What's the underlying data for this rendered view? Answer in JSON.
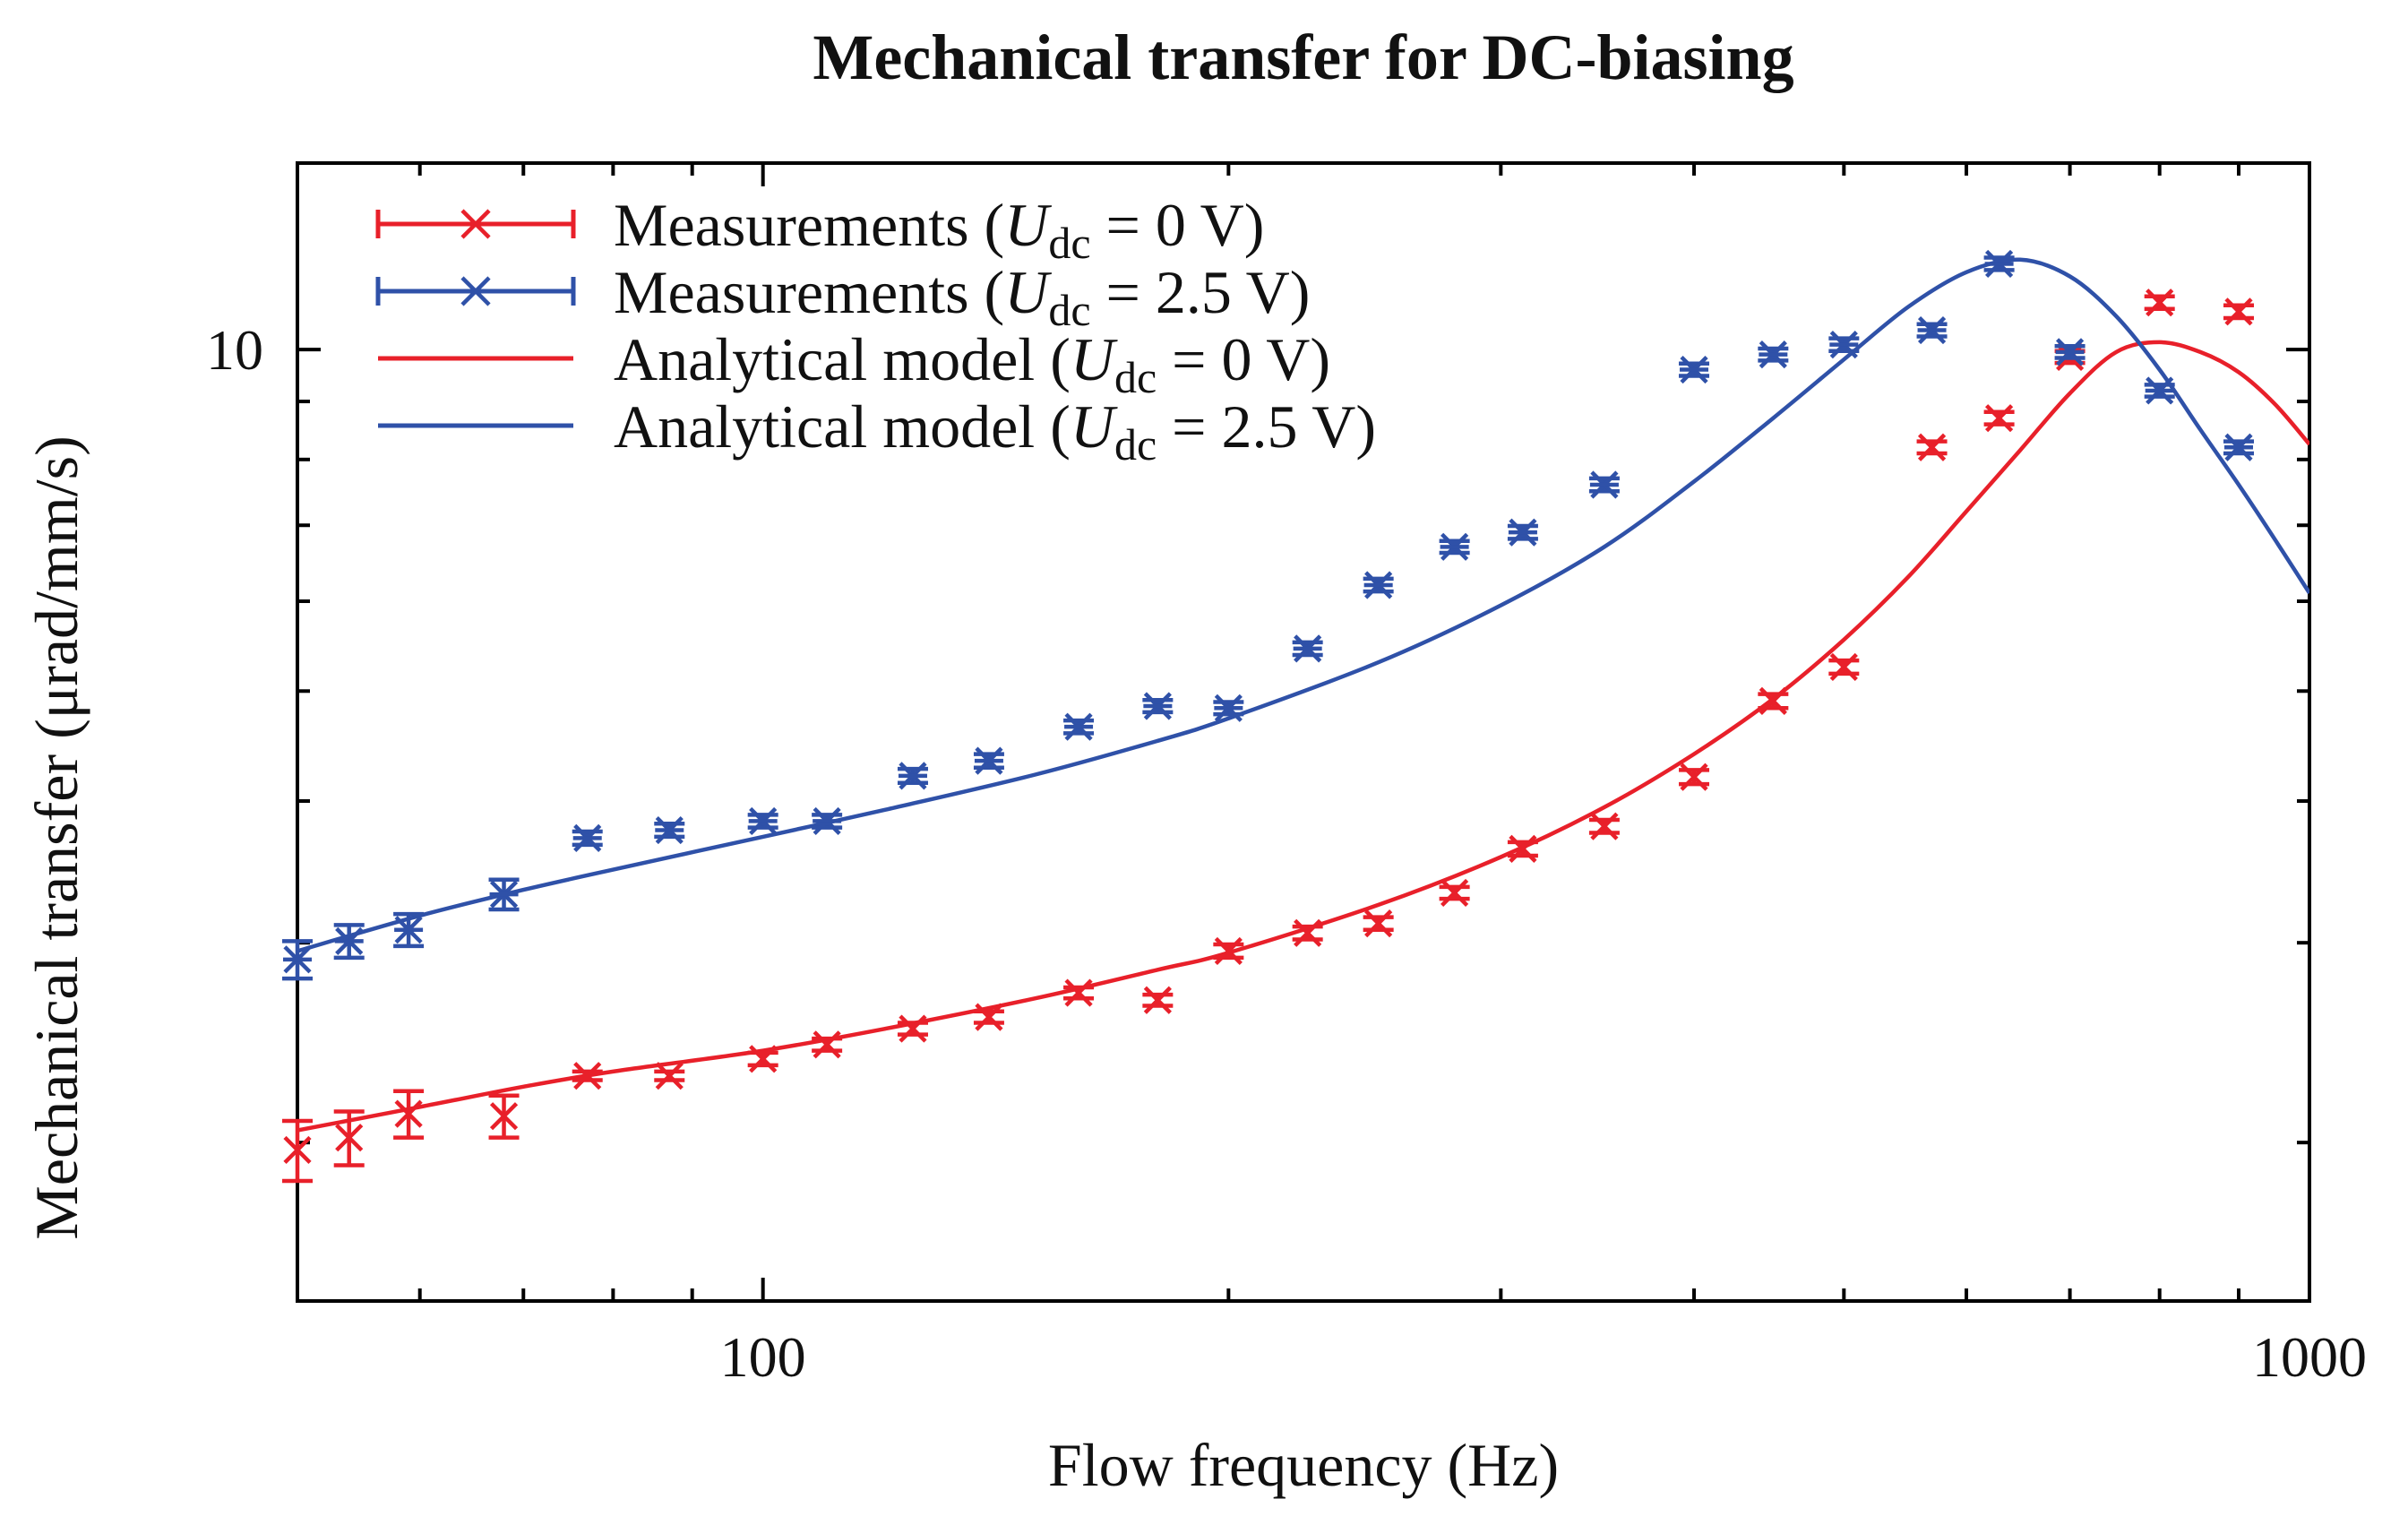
{
  "chart_data": {
    "type": "scatter",
    "title": "Mechanical transfer for DC-biasing",
    "xlabel": "Flow frequency (Hz)",
    "ylabel": "Mechanical transfer (μrad/mm/s)",
    "xscale": "log",
    "yscale": "log",
    "xlim": [
      50,
      1000
    ],
    "ylim": [
      1.45,
      14.6
    ],
    "x_ticks": [
      {
        "value": 100,
        "label": "100"
      },
      {
        "value": 1000,
        "label": "1000"
      }
    ],
    "y_ticks": [
      {
        "value": 10,
        "label": "10"
      }
    ],
    "y_minor_ticks": [
      2,
      3,
      4,
      5,
      6,
      7,
      8,
      9
    ],
    "x_minor_ticks": [
      60,
      70,
      80,
      90,
      200,
      300,
      400,
      500,
      600,
      700,
      800,
      900
    ],
    "legend_position": "top-left",
    "legend": [
      {
        "prefix": "Measurements (",
        "var": "U",
        "sub": "dc",
        "suffix": " = 0 V)",
        "style": "errorbar-x",
        "color": "#e8202a"
      },
      {
        "prefix": "Measurements (",
        "var": "U",
        "sub": "dc",
        "suffix": " = 2.5 V)",
        "style": "errorbar-star",
        "color": "#2f51a8"
      },
      {
        "prefix": "Analytical model (",
        "var": "U",
        "sub": "dc",
        "suffix": " = 0 V)",
        "style": "line",
        "color": "#e8202a"
      },
      {
        "prefix": "Analytical model (",
        "var": "U",
        "sub": "dc",
        "suffix": " = 2.5 V)",
        "style": "line",
        "color": "#2f51a8"
      }
    ],
    "series": [
      {
        "name": "Measurements (Udc = 0 V)",
        "kind": "errorbar",
        "marker": "x",
        "color": "#e8202a",
        "points": [
          {
            "x": 50,
            "y": 1.97,
            "err": 0.12
          },
          {
            "x": 54,
            "y": 2.02,
            "err": 0.11
          },
          {
            "x": 59,
            "y": 2.12,
            "err": 0.1
          },
          {
            "x": 68,
            "y": 2.11,
            "err": 0.09
          },
          {
            "x": 77,
            "y": 2.29,
            "err": 0.02
          },
          {
            "x": 87,
            "y": 2.29,
            "err": 0.02
          },
          {
            "x": 100,
            "y": 2.37,
            "err": 0.03
          },
          {
            "x": 110,
            "y": 2.44,
            "err": 0.03
          },
          {
            "x": 125,
            "y": 2.52,
            "err": 0.03
          },
          {
            "x": 140,
            "y": 2.58,
            "err": 0.03
          },
          {
            "x": 160,
            "y": 2.71,
            "err": 0.03
          },
          {
            "x": 180,
            "y": 2.67,
            "err": 0.03
          },
          {
            "x": 200,
            "y": 2.95,
            "err": 0.04
          },
          {
            "x": 225,
            "y": 3.06,
            "err": 0.04
          },
          {
            "x": 250,
            "y": 3.12,
            "err": 0.04
          },
          {
            "x": 280,
            "y": 3.32,
            "err": 0.04
          },
          {
            "x": 310,
            "y": 3.63,
            "err": 0.05
          },
          {
            "x": 350,
            "y": 3.8,
            "err": 0.05
          },
          {
            "x": 400,
            "y": 4.2,
            "err": 0.06
          },
          {
            "x": 450,
            "y": 4.9,
            "err": 0.07
          },
          {
            "x": 500,
            "y": 5.25,
            "err": 0.07
          },
          {
            "x": 570,
            "y": 8.2,
            "err": 0.1
          },
          {
            "x": 630,
            "y": 8.7,
            "err": 0.11
          },
          {
            "x": 700,
            "y": 9.85,
            "err": 0.12
          },
          {
            "x": 800,
            "y": 11.0,
            "err": 0.14
          },
          {
            "x": 900,
            "y": 10.8,
            "err": 0.14
          }
        ]
      },
      {
        "name": "Measurements (Udc = 2.5 V)",
        "kind": "errorbar",
        "marker": "star",
        "color": "#2f51a8",
        "points": [
          {
            "x": 50,
            "y": 2.9,
            "err": 0.11
          },
          {
            "x": 54,
            "y": 3.01,
            "err": 0.1
          },
          {
            "x": 59,
            "y": 3.08,
            "err": 0.1
          },
          {
            "x": 68,
            "y": 3.31,
            "err": 0.1
          },
          {
            "x": 77,
            "y": 3.71,
            "err": 0.05
          },
          {
            "x": 87,
            "y": 3.77,
            "err": 0.05
          },
          {
            "x": 100,
            "y": 3.84,
            "err": 0.05
          },
          {
            "x": 110,
            "y": 3.84,
            "err": 0.05
          },
          {
            "x": 125,
            "y": 4.21,
            "err": 0.06
          },
          {
            "x": 140,
            "y": 4.34,
            "err": 0.06
          },
          {
            "x": 160,
            "y": 4.65,
            "err": 0.06
          },
          {
            "x": 180,
            "y": 4.85,
            "err": 0.06
          },
          {
            "x": 200,
            "y": 4.83,
            "err": 0.06
          },
          {
            "x": 225,
            "y": 5.45,
            "err": 0.07
          },
          {
            "x": 250,
            "y": 6.2,
            "err": 0.08
          },
          {
            "x": 280,
            "y": 6.7,
            "err": 0.08
          },
          {
            "x": 310,
            "y": 6.9,
            "err": 0.09
          },
          {
            "x": 350,
            "y": 7.6,
            "err": 0.1
          },
          {
            "x": 400,
            "y": 9.6,
            "err": 0.12
          },
          {
            "x": 450,
            "y": 9.9,
            "err": 0.12
          },
          {
            "x": 500,
            "y": 10.1,
            "err": 0.13
          },
          {
            "x": 570,
            "y": 10.4,
            "err": 0.13
          },
          {
            "x": 630,
            "y": 11.9,
            "err": 0.15
          },
          {
            "x": 700,
            "y": 9.95,
            "err": 0.12
          },
          {
            "x": 800,
            "y": 9.2,
            "err": 0.11
          },
          {
            "x": 900,
            "y": 8.2,
            "err": 0.1
          }
        ]
      },
      {
        "name": "Analytical model (Udc = 0 V)",
        "kind": "line",
        "color": "#e8202a",
        "x": [
          50,
          60,
          70,
          80,
          100,
          120,
          150,
          180,
          200,
          250,
          300,
          350,
          400,
          450,
          500,
          550,
          600,
          650,
          700,
          750,
          800,
          850,
          900,
          950,
          1000
        ],
        "y": [
          2.05,
          2.15,
          2.24,
          2.31,
          2.41,
          2.52,
          2.68,
          2.84,
          2.94,
          3.24,
          3.57,
          3.95,
          4.4,
          4.92,
          5.55,
          6.3,
          7.2,
          8.15,
          9.15,
          9.95,
          10.15,
          9.95,
          9.55,
          8.95,
          8.25
        ]
      },
      {
        "name": "Analytical model (Udc = 2.5 V)",
        "kind": "line",
        "color": "#2f51a8",
        "x": [
          50,
          60,
          70,
          80,
          100,
          120,
          150,
          180,
          200,
          250,
          300,
          350,
          400,
          450,
          500,
          550,
          600,
          650,
          700,
          750,
          800,
          850,
          900,
          950,
          1000
        ],
        "y": [
          2.95,
          3.17,
          3.34,
          3.48,
          3.72,
          3.93,
          4.22,
          4.52,
          4.73,
          5.3,
          5.95,
          6.7,
          7.65,
          8.7,
          9.8,
          10.9,
          11.7,
          12.0,
          11.6,
          10.7,
          9.6,
          8.5,
          7.6,
          6.8,
          6.1
        ]
      }
    ]
  }
}
